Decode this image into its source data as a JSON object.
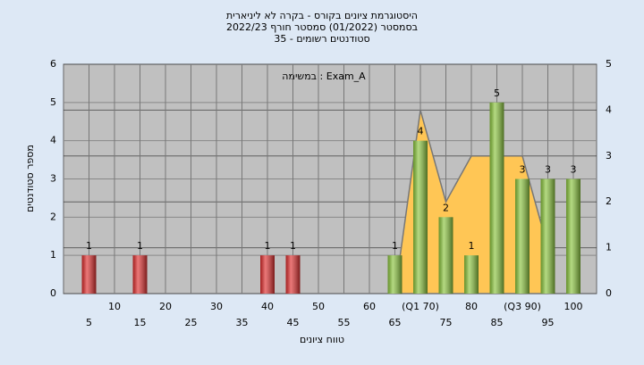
{
  "chart_data": {
    "type": "bar",
    "title": [
      "היסטוגרמת ציונים בקורס - בקרה לא ליניארית",
      "בסמסטר (01/2022) סמסטר חורף 2022/23",
      "סטודנטים רשומים - 35"
    ],
    "annotation": "במשימה : Exam_A",
    "xlabel": "טווח ציונים",
    "ylabel": "מספר סטודנטים",
    "categories": [
      "5",
      "10",
      "15",
      "20",
      "25",
      "30",
      "35",
      "40",
      "45",
      "50",
      "55",
      "60",
      "65",
      "(Q1 70)",
      "75",
      "80",
      "85",
      "(Q3 90)",
      "95",
      "100"
    ],
    "series": [
      {
        "values": [
          1,
          0,
          1,
          0,
          0,
          0,
          0,
          1,
          1,
          0,
          0,
          0,
          1,
          4,
          2,
          1,
          5,
          3,
          3,
          3
        ],
        "colors": [
          "#e03030",
          "#e03030",
          "#e03030",
          "#e03030",
          "#e03030",
          "#e03030",
          "#e03030",
          "#e03030",
          "#e03030",
          "#e03030",
          "#e03030",
          "#e03030",
          "#8cc63f",
          "#8cc63f",
          "#8cc63f",
          "#8cc63f",
          "#8cc63f",
          "#8cc63f",
          "#8cc63f",
          "#8cc63f"
        ]
      },
      {
        "type": "area",
        "axis": "y2",
        "color": "#ffc655",
        "values": [
          null,
          null,
          null,
          null,
          null,
          null,
          null,
          null,
          null,
          null,
          null,
          null,
          0,
          4,
          2,
          3,
          3,
          3,
          1,
          null
        ]
      }
    ],
    "ylim": [
      0,
      6
    ],
    "yticks": [
      0,
      1,
      2,
      3,
      4,
      5,
      6
    ],
    "y2lim": [
      0,
      5
    ],
    "y2ticks": [
      0,
      1,
      2,
      3,
      4,
      5
    ],
    "grid": true
  }
}
